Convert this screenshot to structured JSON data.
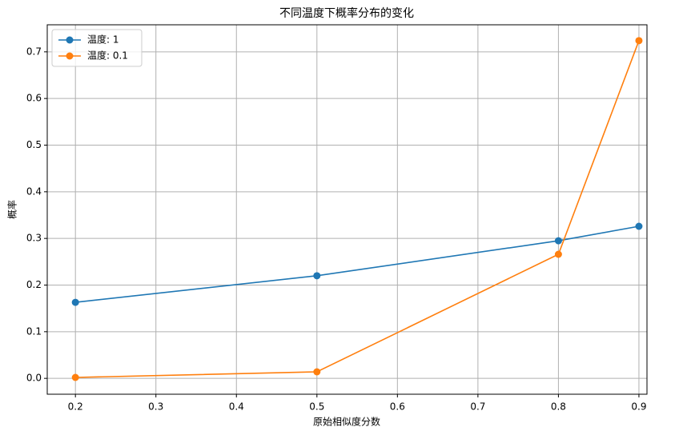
{
  "chart_data": {
    "type": "line",
    "title": "不同温度下概率分布的变化",
    "x_label": "原始相似度分数",
    "y_label": "概率",
    "x": [
      0.2,
      0.5,
      0.8,
      0.9
    ],
    "series": [
      {
        "name": "温度: 1",
        "color": "#1f77b4",
        "values": [
          0.163,
          0.22,
          0.295,
          0.326
        ]
      },
      {
        "name": "温度: 0.1",
        "color": "#ff7f0e",
        "values": [
          0.002,
          0.014,
          0.266,
          0.724
        ]
      }
    ],
    "xlim": [
      0.165,
      0.91
    ],
    "ylim": [
      -0.034,
      0.758
    ],
    "xticks": [
      0.2,
      0.3,
      0.4,
      0.5,
      0.6,
      0.7,
      0.8,
      0.9
    ],
    "yticks": [
      {
        "value": 0,
        "label": "0.0"
      },
      0.1,
      0.2,
      0.3,
      0.4,
      0.5,
      0.6,
      0.7
    ],
    "grid": true,
    "legend": "upper-left"
  }
}
